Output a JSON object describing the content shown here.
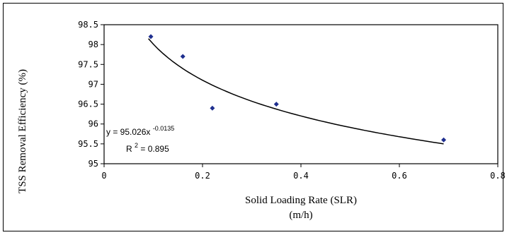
{
  "chart_data": {
    "type": "scatter",
    "title": "",
    "xlabel": "Solid Loading Rate (SLR)",
    "xlabel_unit": "(m/h)",
    "ylabel": "TSS Removal Efficiency (%)",
    "xlim": [
      0,
      0.8
    ],
    "ylim": [
      95,
      98.5
    ],
    "x_ticks": [
      "0",
      "0.2",
      "0.4",
      "0.6",
      "0.8"
    ],
    "y_ticks": [
      "95",
      "95.5",
      "96",
      "96.5",
      "97",
      "97.5",
      "98",
      "98.5"
    ],
    "grid": false,
    "legend": "none",
    "marker_color": "#1f2f8f",
    "points": [
      {
        "x": 0.095,
        "y": 98.2
      },
      {
        "x": 0.16,
        "y": 97.7
      },
      {
        "x": 0.22,
        "y": 96.4
      },
      {
        "x": 0.35,
        "y": 96.5
      },
      {
        "x": 0.69,
        "y": 95.6
      }
    ],
    "trendline": {
      "type": "power",
      "a": 95.026,
      "b": -0.0135,
      "x_range": [
        0.09,
        0.69
      ],
      "label_prefix": "y = 95.026x",
      "label_exponent": "-0.0135",
      "r2_prefix": "R",
      "r2_exponent": "2",
      "r2_value": " = 0.895"
    }
  }
}
